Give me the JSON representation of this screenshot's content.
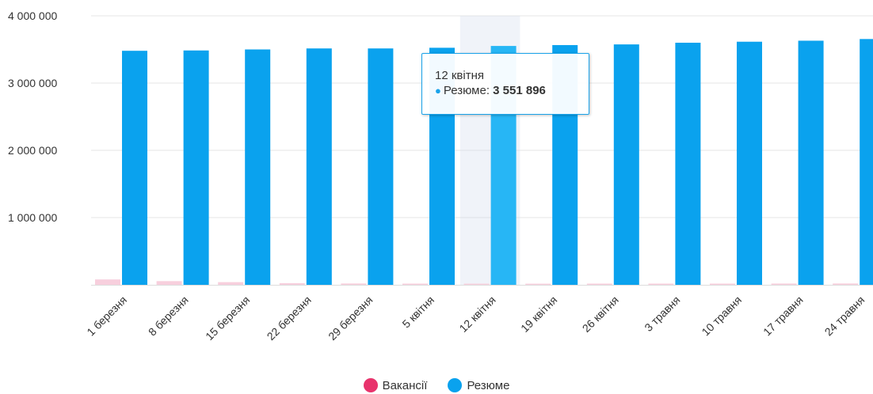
{
  "chart_data": {
    "type": "bar",
    "categories": [
      "1 березня",
      "8 березня",
      "15 березня",
      "22 березня",
      "29 березня",
      "5 квітня",
      "12 квітня",
      "19 квітня",
      "26 квітня",
      "3 травня",
      "10 травня",
      "17 травня",
      "24 травня"
    ],
    "series": [
      {
        "name": "Вакансії",
        "color": "#f7cfdd",
        "values": [
          80000,
          55000,
          40000,
          25000,
          20000,
          18000,
          17000,
          17000,
          18000,
          18000,
          18000,
          19000,
          20000
        ]
      },
      {
        "name": "Резюме",
        "color": "#0aa2ee",
        "values": [
          3480000,
          3485000,
          3500000,
          3515000,
          3515000,
          3525000,
          3551896,
          3565000,
          3575000,
          3600000,
          3615000,
          3630000,
          3655000
        ]
      }
    ],
    "y_ticks": [
      "1 000 000",
      "2 000 000",
      "3 000 000",
      "4 000 000"
    ],
    "y_tick_values": [
      1000000,
      2000000,
      3000000,
      4000000
    ],
    "ylim": [
      0,
      4000000
    ],
    "legend": {
      "position": "bottom-center",
      "items": [
        {
          "label": "Вакансії",
          "color": "#e8336c"
        },
        {
          "label": "Резюме",
          "color": "#0aa2ee"
        }
      ]
    },
    "grid": true,
    "highlighted_category_index": 6,
    "tooltip": {
      "title": "12 квітня",
      "series_label": "Резюме:",
      "value": "3 551 896",
      "color": "#1aa3ea"
    }
  }
}
